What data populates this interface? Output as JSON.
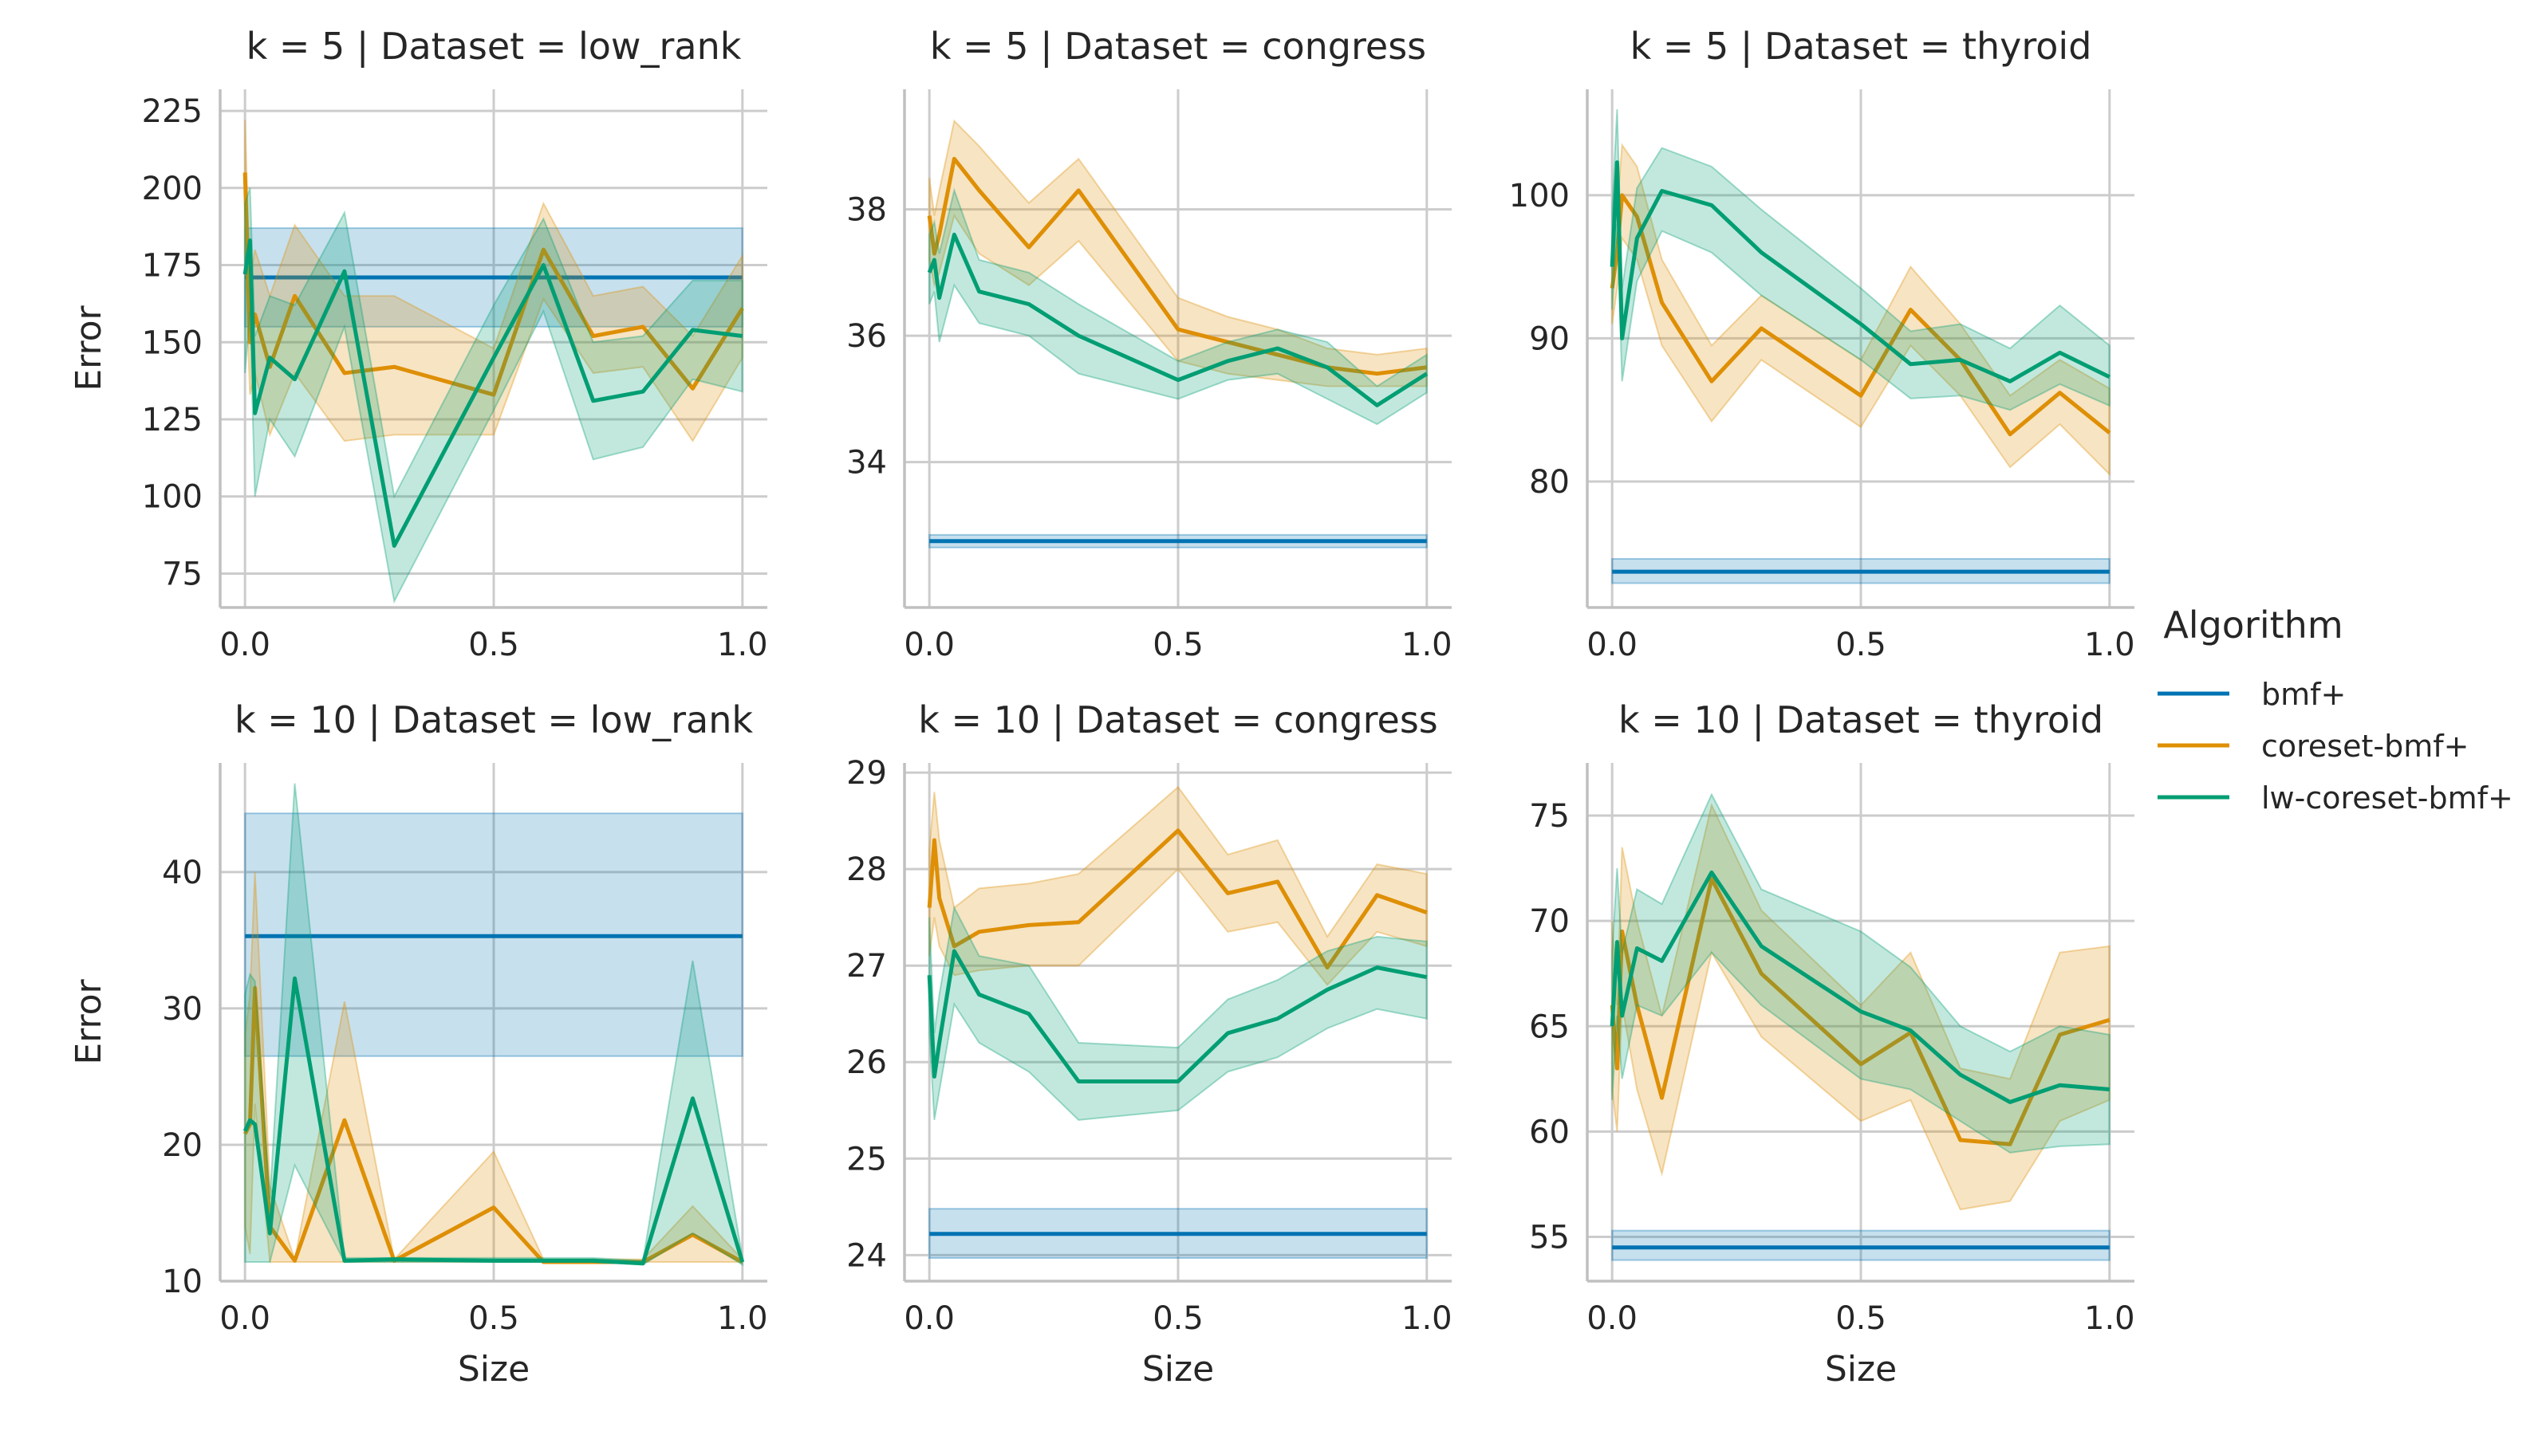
{
  "colors": {
    "bmf+": "#0173b2",
    "coreset-bmf+": "#de8f05",
    "lw-coreset-bmf+": "#029e73",
    "grid": "#cccccc",
    "text": "#262626"
  },
  "legend": {
    "title": "Algorithm",
    "placement": "right",
    "entries": [
      "bmf+",
      "coreset-bmf+",
      "lw-coreset-bmf+"
    ]
  },
  "chart_data": [
    {
      "type": "line",
      "title": "k = 5 | Dataset = low_rank",
      "xlabel": "",
      "ylabel": "Error",
      "xlim": [
        -0.05,
        1.05
      ],
      "ylim": [
        64,
        232
      ],
      "xticks": [
        0.0,
        0.5,
        1.0
      ],
      "xtick_labels": [
        "0.0",
        "0.5",
        "1.0"
      ],
      "yticks": [
        75,
        100,
        125,
        150,
        175,
        200,
        225
      ],
      "grid": true,
      "series": [
        {
          "name": "bmf+",
          "x": [
            0,
            1
          ],
          "y": [
            171,
            171
          ],
          "lo": [
            155,
            155
          ],
          "hi": [
            187,
            187
          ]
        },
        {
          "name": "coreset-bmf+",
          "x": [
            0,
            0.01,
            0.02,
            0.05,
            0.1,
            0.2,
            0.3,
            0.5,
            0.6,
            0.7,
            0.8,
            0.9,
            1.0
          ],
          "y": [
            205,
            150,
            159,
            142,
            165,
            140,
            142,
            133,
            180,
            152,
            155,
            135,
            161
          ],
          "lo": [
            175,
            133,
            140,
            120,
            140,
            118,
            120,
            120,
            164,
            140,
            142,
            118,
            145
          ],
          "hi": [
            222,
            170,
            180,
            165,
            188,
            165,
            165,
            148,
            195,
            165,
            168,
            152,
            178
          ]
        },
        {
          "name": "lw-coreset-bmf+",
          "x": [
            0,
            0.01,
            0.02,
            0.05,
            0.1,
            0.2,
            0.3,
            0.5,
            0.6,
            0.7,
            0.8,
            0.9,
            1.0
          ],
          "y": [
            172,
            183,
            127,
            145,
            138,
            173,
            84,
            145,
            175,
            131,
            134,
            154,
            152
          ],
          "lo": [
            140,
            160,
            100,
            125,
            113,
            155,
            66,
            128,
            160,
            112,
            116,
            138,
            134
          ],
          "hi": [
            195,
            200,
            152,
            165,
            162,
            192,
            100,
            162,
            190,
            150,
            152,
            170,
            170
          ]
        }
      ]
    },
    {
      "type": "line",
      "title": "k = 5 | Dataset = congress",
      "xlabel": "",
      "ylabel": "",
      "xlim": [
        -0.05,
        1.05
      ],
      "ylim": [
        31.7,
        39.9
      ],
      "xticks": [
        0.0,
        0.5,
        1.0
      ],
      "xtick_labels": [
        "0.0",
        "0.5",
        "1.0"
      ],
      "yticks": [
        34,
        36,
        38
      ],
      "grid": true,
      "series": [
        {
          "name": "bmf+",
          "x": [
            0,
            1
          ],
          "y": [
            32.75,
            32.75
          ],
          "lo": [
            32.65,
            32.65
          ],
          "hi": [
            32.85,
            32.85
          ]
        },
        {
          "name": "coreset-bmf+",
          "x": [
            0,
            0.01,
            0.02,
            0.05,
            0.1,
            0.2,
            0.3,
            0.5,
            0.6,
            0.7,
            0.8,
            0.9,
            1.0
          ],
          "y": [
            37.9,
            37.3,
            37.6,
            38.8,
            38.3,
            37.4,
            38.3,
            36.1,
            35.9,
            35.7,
            35.5,
            35.4,
            35.5
          ],
          "lo": [
            37.2,
            36.8,
            37.0,
            37.9,
            37.3,
            36.8,
            37.5,
            35.6,
            35.4,
            35.3,
            35.2,
            35.2,
            35.2
          ],
          "hi": [
            38.5,
            37.9,
            38.3,
            39.4,
            39.0,
            38.1,
            38.8,
            36.6,
            36.3,
            36.1,
            35.8,
            35.7,
            35.8
          ]
        },
        {
          "name": "lw-coreset-bmf+",
          "x": [
            0,
            0.01,
            0.02,
            0.05,
            0.1,
            0.2,
            0.3,
            0.5,
            0.6,
            0.7,
            0.8,
            0.9,
            1.0
          ],
          "y": [
            37.0,
            37.2,
            36.6,
            37.6,
            36.7,
            36.5,
            36.0,
            35.3,
            35.6,
            35.8,
            35.5,
            34.9,
            35.4
          ],
          "lo": [
            36.5,
            36.7,
            35.9,
            36.8,
            36.2,
            36.0,
            35.4,
            35.0,
            35.3,
            35.4,
            35.0,
            34.6,
            35.1
          ],
          "hi": [
            37.6,
            37.8,
            37.3,
            38.3,
            37.2,
            37.0,
            36.5,
            35.6,
            35.9,
            36.1,
            35.9,
            35.2,
            35.7
          ]
        }
      ]
    },
    {
      "type": "line",
      "title": "k = 5 | Dataset = thyroid",
      "xlabel": "",
      "ylabel": "",
      "xlim": [
        -0.05,
        1.05
      ],
      "ylim": [
        71.2,
        107.4
      ],
      "xticks": [
        0.0,
        0.5,
        1.0
      ],
      "xtick_labels": [
        "0.0",
        "0.5",
        "1.0"
      ],
      "yticks": [
        80,
        90,
        100
      ],
      "grid": true,
      "series": [
        {
          "name": "bmf+",
          "x": [
            0,
            1
          ],
          "y": [
            73.7,
            73.7
          ],
          "lo": [
            72.9,
            72.9
          ],
          "hi": [
            74.6,
            74.6
          ]
        },
        {
          "name": "coreset-bmf+",
          "x": [
            0,
            0.01,
            0.02,
            0.05,
            0.1,
            0.2,
            0.3,
            0.5,
            0.6,
            0.7,
            0.8,
            0.9,
            1.0
          ],
          "y": [
            93.5,
            96.0,
            100.0,
            98.5,
            92.5,
            87.0,
            90.7,
            86.0,
            92.0,
            88.5,
            83.3,
            86.2,
            83.4
          ],
          "lo": [
            91.0,
            93.5,
            97.0,
            95.5,
            89.5,
            84.2,
            88.5,
            83.8,
            89.5,
            86.0,
            81.0,
            84.0,
            80.5
          ],
          "hi": [
            96.5,
            99.0,
            103.5,
            102.0,
            95.5,
            89.5,
            93.0,
            88.5,
            95.0,
            91.0,
            86.0,
            88.5,
            86.5
          ]
        },
        {
          "name": "lw-coreset-bmf+",
          "x": [
            0,
            0.01,
            0.02,
            0.05,
            0.1,
            0.2,
            0.3,
            0.5,
            0.6,
            0.7,
            0.8,
            0.9,
            1.0
          ],
          "y": [
            95.0,
            102.3,
            90.0,
            97.0,
            100.3,
            99.3,
            96.0,
            91.0,
            88.2,
            88.5,
            87.0,
            89.0,
            87.3
          ],
          "lo": [
            92.0,
            98.0,
            87.0,
            94.0,
            97.5,
            96.0,
            93.0,
            88.5,
            85.8,
            86.0,
            85.0,
            86.8,
            85.3
          ],
          "hi": [
            99.0,
            106.0,
            93.5,
            100.5,
            103.3,
            102.0,
            99.0,
            93.5,
            90.5,
            91.0,
            89.3,
            92.3,
            89.5
          ]
        }
      ]
    },
    {
      "type": "line",
      "title": "k = 10 | Dataset = low_rank",
      "xlabel": "Size",
      "ylabel": "Error",
      "xlim": [
        -0.05,
        1.05
      ],
      "ylim": [
        10,
        48
      ],
      "xticks": [
        0.0,
        0.5,
        1.0
      ],
      "xtick_labels": [
        "0.0",
        "0.5",
        "1.0"
      ],
      "yticks": [
        10,
        20,
        30,
        40
      ],
      "grid": true,
      "series": [
        {
          "name": "bmf+",
          "x": [
            0,
            1
          ],
          "y": [
            35.3,
            35.3
          ],
          "lo": [
            26.5,
            26.5
          ],
          "hi": [
            44.3,
            44.3
          ]
        },
        {
          "name": "coreset-bmf+",
          "x": [
            0,
            0.01,
            0.02,
            0.05,
            0.1,
            0.2,
            0.3,
            0.5,
            0.6,
            0.7,
            0.8,
            0.9,
            1.0
          ],
          "y": [
            20.8,
            21.5,
            31.5,
            14.0,
            11.5,
            21.8,
            11.5,
            15.4,
            11.4,
            11.4,
            11.4,
            13.4,
            11.4
          ],
          "lo": [
            14.0,
            12.0,
            23.0,
            11.4,
            11.4,
            11.4,
            11.4,
            11.4,
            11.4,
            11.4,
            11.4,
            11.4,
            11.4
          ],
          "hi": [
            28.0,
            31.0,
            40.0,
            17.0,
            11.6,
            30.5,
            11.6,
            19.5,
            11.6,
            11.6,
            11.6,
            15.5,
            11.6
          ]
        },
        {
          "name": "lw-coreset-bmf+",
          "x": [
            0,
            0.01,
            0.02,
            0.05,
            0.1,
            0.2,
            0.3,
            0.5,
            0.6,
            0.7,
            0.8,
            0.9,
            1.0
          ],
          "y": [
            21.0,
            21.8,
            21.5,
            13.5,
            32.2,
            11.5,
            11.6,
            11.5,
            11.5,
            11.5,
            11.3,
            23.4,
            11.4
          ],
          "lo": [
            11.4,
            11.4,
            11.4,
            11.4,
            18.5,
            11.4,
            11.4,
            11.4,
            11.4,
            11.4,
            11.2,
            13.5,
            11.2
          ],
          "hi": [
            31.0,
            32.5,
            32.0,
            16.0,
            46.5,
            11.7,
            11.7,
            11.7,
            11.7,
            11.7,
            11.5,
            33.5,
            11.7
          ]
        }
      ]
    },
    {
      "type": "line",
      "title": "k = 10 | Dataset = congress",
      "xlabel": "Size",
      "ylabel": "",
      "xlim": [
        -0.05,
        1.05
      ],
      "ylim": [
        23.73,
        29.1
      ],
      "xticks": [
        0.0,
        0.5,
        1.0
      ],
      "xtick_labels": [
        "0.0",
        "0.5",
        "1.0"
      ],
      "yticks": [
        24,
        25,
        26,
        27,
        28,
        29
      ],
      "grid": true,
      "series": [
        {
          "name": "bmf+",
          "x": [
            0,
            1
          ],
          "y": [
            24.22,
            24.22
          ],
          "lo": [
            23.97,
            23.97
          ],
          "hi": [
            24.48,
            24.48
          ]
        },
        {
          "name": "coreset-bmf+",
          "x": [
            0,
            0.01,
            0.02,
            0.05,
            0.1,
            0.2,
            0.3,
            0.5,
            0.6,
            0.7,
            0.8,
            0.9,
            1.0
          ],
          "y": [
            27.6,
            28.3,
            27.7,
            27.2,
            27.35,
            27.42,
            27.45,
            28.4,
            27.75,
            27.87,
            26.98,
            27.73,
            27.55
          ],
          "lo": [
            27.1,
            27.5,
            27.2,
            26.9,
            26.95,
            27.0,
            27.0,
            28.0,
            27.35,
            27.45,
            26.8,
            27.35,
            27.2
          ],
          "hi": [
            28.2,
            28.8,
            28.3,
            27.6,
            27.8,
            27.85,
            27.95,
            28.85,
            28.15,
            28.3,
            27.3,
            28.05,
            27.95
          ]
        },
        {
          "name": "lw-coreset-bmf+",
          "x": [
            0,
            0.01,
            0.02,
            0.05,
            0.1,
            0.2,
            0.3,
            0.5,
            0.6,
            0.7,
            0.8,
            0.9,
            1.0
          ],
          "y": [
            26.9,
            25.85,
            26.2,
            27.15,
            26.7,
            26.5,
            25.8,
            25.8,
            26.3,
            26.45,
            26.75,
            26.98,
            26.88
          ],
          "lo": [
            26.3,
            25.4,
            25.7,
            26.6,
            26.2,
            25.9,
            25.4,
            25.5,
            25.9,
            26.05,
            26.35,
            26.55,
            26.45
          ],
          "hi": [
            27.5,
            26.3,
            26.7,
            27.6,
            27.1,
            27.0,
            26.2,
            26.15,
            26.65,
            26.85,
            27.15,
            27.3,
            27.25
          ]
        }
      ]
    },
    {
      "type": "line",
      "title": "k = 10 | Dataset = thyroid",
      "xlabel": "Size",
      "ylabel": "",
      "xlim": [
        -0.05,
        1.05
      ],
      "ylim": [
        52.9,
        77.5
      ],
      "xticks": [
        0.0,
        0.5,
        1.0
      ],
      "xtick_labels": [
        "0.0",
        "0.5",
        "1.0"
      ],
      "yticks": [
        55,
        60,
        65,
        70,
        75
      ],
      "grid": true,
      "series": [
        {
          "name": "bmf+",
          "x": [
            0,
            1
          ],
          "y": [
            54.5,
            54.5
          ],
          "lo": [
            53.9,
            53.9
          ],
          "hi": [
            55.3,
            55.3
          ]
        },
        {
          "name": "coreset-bmf+",
          "x": [
            0,
            0.01,
            0.02,
            0.05,
            0.1,
            0.2,
            0.3,
            0.5,
            0.6,
            0.7,
            0.8,
            0.9,
            1.0
          ],
          "y": [
            66.0,
            63.0,
            69.5,
            66.0,
            61.6,
            72.0,
            67.5,
            63.2,
            64.7,
            59.6,
            59.4,
            64.6,
            65.3
          ],
          "lo": [
            62.0,
            60.0,
            66.0,
            62.0,
            58.0,
            68.5,
            64.5,
            60.5,
            61.5,
            56.3,
            56.7,
            60.5,
            61.5
          ],
          "hi": [
            70.0,
            66.0,
            73.5,
            70.0,
            65.5,
            75.5,
            70.5,
            66.0,
            68.5,
            63.0,
            62.5,
            68.5,
            68.8
          ]
        },
        {
          "name": "lw-coreset-bmf+",
          "x": [
            0,
            0.01,
            0.02,
            0.05,
            0.1,
            0.2,
            0.3,
            0.5,
            0.6,
            0.7,
            0.8,
            0.9,
            1.0
          ],
          "y": [
            65.0,
            69.0,
            65.5,
            68.7,
            68.1,
            72.3,
            68.8,
            65.7,
            64.8,
            62.7,
            61.4,
            62.2,
            62.0
          ],
          "lo": [
            61.5,
            65.5,
            62.5,
            66.0,
            65.5,
            68.5,
            66.0,
            62.5,
            62.0,
            60.5,
            59.0,
            59.3,
            59.4
          ],
          "hi": [
            68.5,
            72.5,
            68.5,
            71.5,
            70.8,
            76.0,
            71.5,
            69.5,
            67.8,
            65.0,
            63.8,
            65.0,
            64.6
          ]
        }
      ]
    }
  ]
}
